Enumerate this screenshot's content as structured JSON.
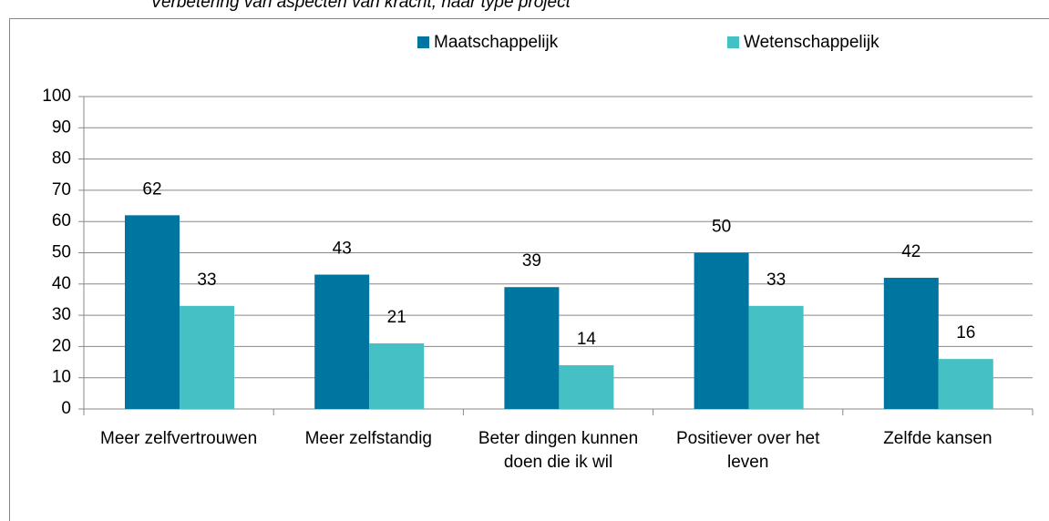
{
  "chart_data": {
    "type": "bar",
    "title": "Verbetering van aspecten van kracht, naar type project",
    "categories": [
      "Meer zelfvertrouwen",
      "Meer zelfstandig",
      "Beter dingen kunnen doen die ik wil",
      "Positiever over het leven",
      "Zelfde kansen"
    ],
    "series": [
      {
        "name": "Maatschappelijk",
        "color": "#00759f",
        "values": [
          62,
          43,
          39,
          50,
          42
        ]
      },
      {
        "name": "Wetenschappelijk",
        "color": "#45c1c5",
        "values": [
          33,
          21,
          14,
          33,
          16
        ]
      }
    ],
    "ylim": [
      0,
      100
    ],
    "yticks": [
      0,
      10,
      20,
      30,
      40,
      50,
      60,
      70,
      80,
      90,
      100
    ],
    "grid": true,
    "legend": "top"
  }
}
